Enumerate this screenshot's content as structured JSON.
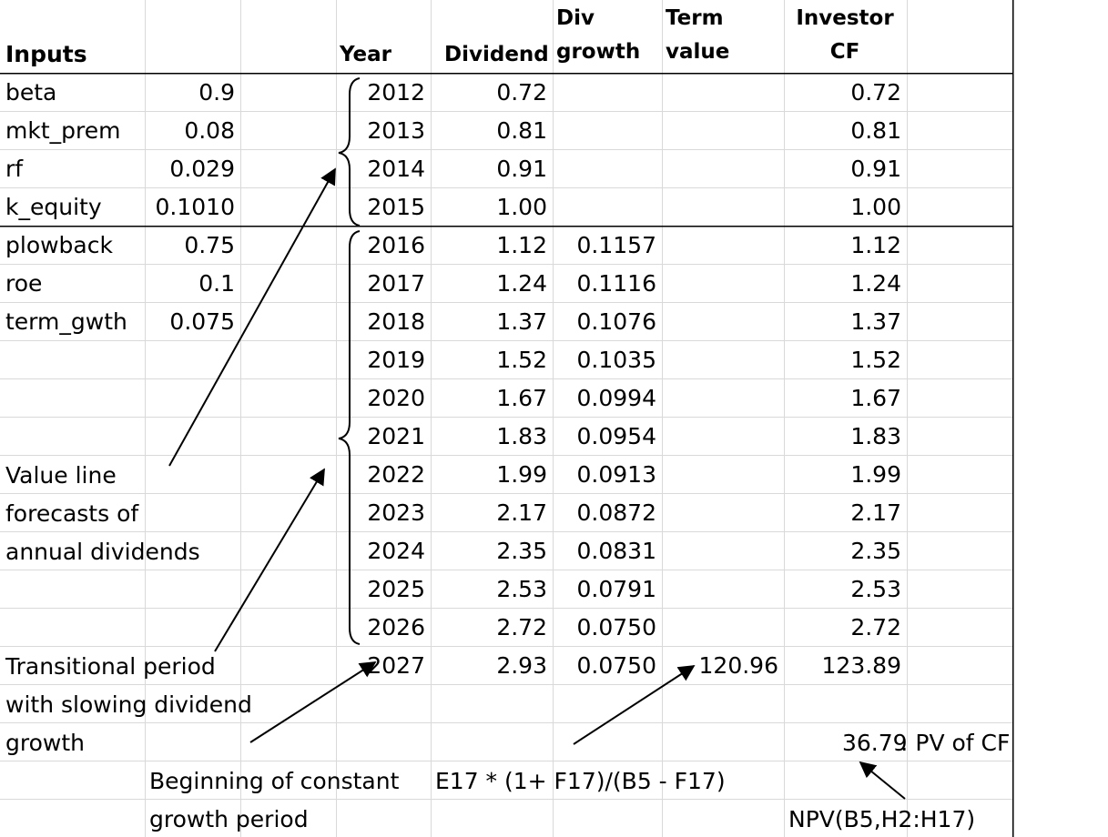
{
  "headers": {
    "inputs": "Inputs",
    "year": "Year",
    "dividend": "Dividend",
    "div_growth_1": "Div",
    "div_growth_2": "growth",
    "term_value_1": "Term",
    "term_value_2": "value",
    "investor_cf_1": "Investor",
    "investor_cf_2": "CF"
  },
  "inputs": [
    {
      "label": "beta",
      "value": "0.9"
    },
    {
      "label": "mkt_prem",
      "value": "0.08"
    },
    {
      "label": "rf",
      "value": "0.029"
    },
    {
      "label": "k_equity",
      "value": "0.1010"
    },
    {
      "label": "plowback",
      "value": "0.75"
    },
    {
      "label": "roe",
      "value": "0.1"
    },
    {
      "label": "term_gwth",
      "value": "0.075"
    }
  ],
  "rows": [
    {
      "year": "2012",
      "dividend": "0.72",
      "growth": "",
      "term": "",
      "cf": "0.72"
    },
    {
      "year": "2013",
      "dividend": "0.81",
      "growth": "",
      "term": "",
      "cf": "0.81"
    },
    {
      "year": "2014",
      "dividend": "0.91",
      "growth": "",
      "term": "",
      "cf": "0.91"
    },
    {
      "year": "2015",
      "dividend": "1.00",
      "growth": "",
      "term": "",
      "cf": "1.00"
    },
    {
      "year": "2016",
      "dividend": "1.12",
      "growth": "0.1157",
      "term": "",
      "cf": "1.12"
    },
    {
      "year": "2017",
      "dividend": "1.24",
      "growth": "0.1116",
      "term": "",
      "cf": "1.24"
    },
    {
      "year": "2018",
      "dividend": "1.37",
      "growth": "0.1076",
      "term": "",
      "cf": "1.37"
    },
    {
      "year": "2019",
      "dividend": "1.52",
      "growth": "0.1035",
      "term": "",
      "cf": "1.52"
    },
    {
      "year": "2020",
      "dividend": "1.67",
      "growth": "0.0994",
      "term": "",
      "cf": "1.67"
    },
    {
      "year": "2021",
      "dividend": "1.83",
      "growth": "0.0954",
      "term": "",
      "cf": "1.83"
    },
    {
      "year": "2022",
      "dividend": "1.99",
      "growth": "0.0913",
      "term": "",
      "cf": "1.99"
    },
    {
      "year": "2023",
      "dividend": "2.17",
      "growth": "0.0872",
      "term": "",
      "cf": "2.17"
    },
    {
      "year": "2024",
      "dividend": "2.35",
      "growth": "0.0831",
      "term": "",
      "cf": "2.35"
    },
    {
      "year": "2025",
      "dividend": "2.53",
      "growth": "0.0791",
      "term": "",
      "cf": "2.53"
    },
    {
      "year": "2026",
      "dividend": "2.72",
      "growth": "0.0750",
      "term": "",
      "cf": "2.72"
    },
    {
      "year": "2027",
      "dividend": "2.93",
      "growth": "0.0750",
      "term": "120.96",
      "cf": "123.89"
    }
  ],
  "annotations": {
    "value_line": [
      "Value line",
      "forecasts of",
      "annual dividends"
    ],
    "transitional": [
      "Transitional period",
      "with slowing dividend",
      "growth"
    ],
    "constant": [
      "Beginning of constant",
      "growth period"
    ],
    "term_formula": "E17 * (1+ F17)/(B5 - F17)",
    "pv_value": "36.79",
    "pv_label": ": PV of CF",
    "npv_formula": "NPV(B5,H2:H17)"
  },
  "colors": {
    "grid": "#d9d9d9",
    "border": "#000000",
    "text": "#000000"
  }
}
